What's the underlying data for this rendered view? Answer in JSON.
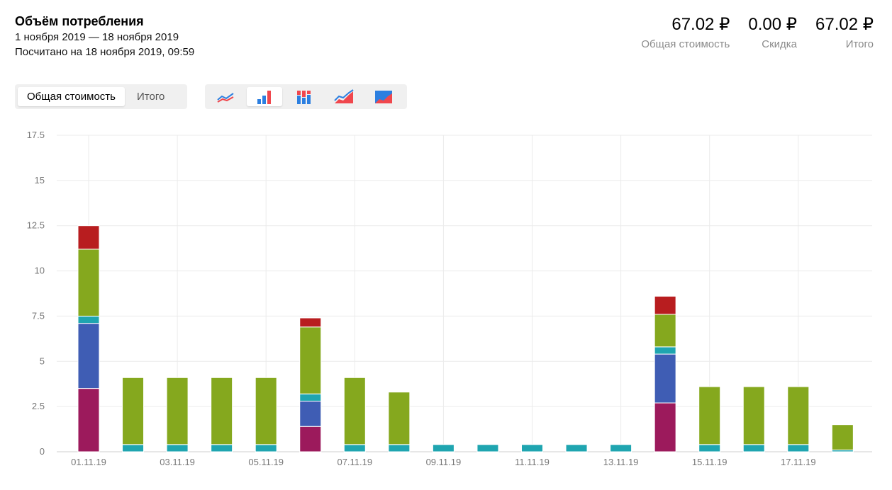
{
  "header": {
    "title": "Объём потребления",
    "period": "1 ноября 2019 — 18 ноября 2019",
    "calculated": "Посчитано на 18 ноября 2019, 09:59"
  },
  "totals": [
    {
      "value": "67.02 ₽",
      "label": "Общая стоимость"
    },
    {
      "value": "0.00 ₽",
      "label": "Скидка"
    },
    {
      "value": "67.02 ₽",
      "label": "Итого"
    }
  ],
  "mode_switch": {
    "options": [
      "Общая стоимость",
      "Итого"
    ],
    "selected": "Общая стоимость"
  },
  "chart_types": {
    "icons": [
      "line-chart-icon",
      "bar-chart-icon",
      "stacked-bar-icon",
      "line-area-icon",
      "area-chart-icon"
    ],
    "selected": "bar-chart-icon"
  },
  "colors": {
    "series1": "#9c1a5c",
    "series2": "#3f5db4",
    "series3": "#1fa5b0",
    "series4": "#85a81e",
    "series5": "#b81d1f",
    "icon_blue": "#2c7fe0",
    "icon_red": "#f0474d",
    "grid": "#ebebeb"
  },
  "chart_data": {
    "type": "bar",
    "stacked": true,
    "categories": [
      "01.11.19",
      "02.11.19",
      "03.11.19",
      "04.11.19",
      "05.11.19",
      "06.11.19",
      "07.11.19",
      "08.11.19",
      "09.11.19",
      "10.11.19",
      "11.11.19",
      "12.11.19",
      "13.11.19",
      "14.11.19",
      "15.11.19",
      "16.11.19",
      "17.11.19",
      "18.11.19"
    ],
    "x_tick_labels": [
      "01.11.19",
      "03.11.19",
      "05.11.19",
      "07.11.19",
      "09.11.19",
      "11.11.19",
      "13.11.19",
      "15.11.19",
      "17.11.19"
    ],
    "y_tick_labels": [
      "0",
      "2.5",
      "5",
      "7.5",
      "10",
      "12.5",
      "15",
      "17.5"
    ],
    "ylim": [
      0,
      17.5
    ],
    "grid": true,
    "series": [
      {
        "values": [
          3.5,
          0,
          0,
          0,
          0,
          1.4,
          0,
          0,
          0,
          0,
          0,
          0,
          0,
          2.7,
          0,
          0,
          0,
          0
        ]
      },
      {
        "values": [
          3.6,
          0,
          0,
          0,
          0,
          1.4,
          0,
          0,
          0,
          0,
          0,
          0,
          0,
          2.7,
          0,
          0,
          0,
          0
        ]
      },
      {
        "values": [
          0.4,
          0.4,
          0.4,
          0.4,
          0.4,
          0.4,
          0.4,
          0.4,
          0.4,
          0.4,
          0.4,
          0.4,
          0.4,
          0.4,
          0.4,
          0.4,
          0.4,
          0.1
        ]
      },
      {
        "values": [
          3.7,
          3.7,
          3.7,
          3.7,
          3.7,
          3.7,
          3.7,
          2.9,
          0,
          0,
          0,
          0,
          0,
          1.8,
          3.2,
          3.2,
          3.2,
          1.4
        ]
      },
      {
        "values": [
          1.3,
          0,
          0,
          0,
          0,
          0.5,
          0,
          0,
          0,
          0,
          0,
          0,
          0,
          1.0,
          0,
          0,
          0,
          0
        ]
      }
    ]
  }
}
